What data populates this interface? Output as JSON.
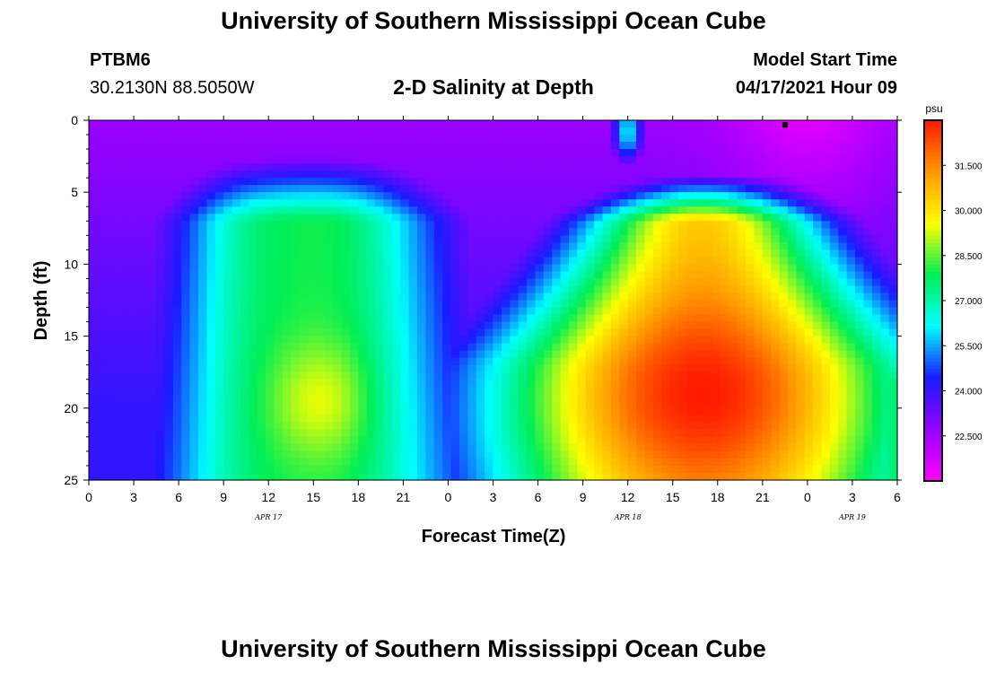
{
  "header": {
    "title_top": "University of Southern Mississippi Ocean Cube",
    "station_id": "PTBM6",
    "station_coords": "30.2130N  88.5050W",
    "chart_title": "2-D Salinity at Depth",
    "model_label": "Model Start Time",
    "model_time": "04/17/2021 Hour 09",
    "title_bottom": "University of Southern Mississippi Ocean Cube"
  },
  "chart_data": {
    "type": "heatmap",
    "title": "2-D Salinity at Depth",
    "xlabel": "Forecast Time(Z)",
    "ylabel": "Depth (ft)",
    "x_range_hours": [
      0,
      54
    ],
    "x_ticks": [
      "0",
      "3",
      "6",
      "9",
      "12",
      "15",
      "18",
      "21",
      "0",
      "3",
      "6",
      "9",
      "12",
      "15",
      "18",
      "21",
      "0",
      "3",
      "6"
    ],
    "day_labels": [
      {
        "text": "APR 17",
        "hour": 12
      },
      {
        "text": "APR 18",
        "hour": 36
      },
      {
        "text": "APR 19",
        "hour": 51
      }
    ],
    "y_range_ft": [
      0,
      25
    ],
    "y_ticks": [
      0,
      5,
      10,
      15,
      20,
      25
    ],
    "colorbar": {
      "unit": "psu",
      "ticks": [
        "31.500",
        "30.000",
        "28.500",
        "27.000",
        "25.500",
        "24.000",
        "22.500"
      ],
      "range": [
        21.0,
        33.0
      ],
      "colors": [
        "#ff00ff",
        "#9900ff",
        "#1a1aff",
        "#00ffff",
        "#00ee55",
        "#ffff00",
        "#ff9900",
        "#ff1a00"
      ]
    },
    "grid": false,
    "marker": {
      "hour": 46.5,
      "depth": 0.2
    }
  }
}
